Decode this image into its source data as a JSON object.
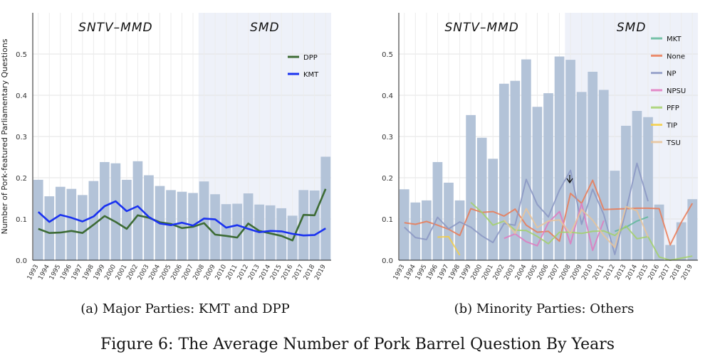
{
  "figure_caption": "Figure 6: The Average Number of Pork Barrel Question By Years",
  "years": [
    "1993",
    "1994",
    "1995",
    "1996",
    "1997",
    "1998",
    "1999",
    "2000",
    "2001",
    "2002",
    "2003",
    "2004",
    "2005",
    "2006",
    "2007",
    "2008",
    "2009",
    "2010",
    "2011",
    "2012",
    "2013",
    "2014",
    "2015",
    "2016",
    "2017",
    "2018",
    "2019"
  ],
  "chart_data": [
    {
      "type": "bar",
      "caption": "(a) Major Parties: KMT and DPP",
      "ylabel": "Number of Pork-featured Parliamentary Questions",
      "ylim": [
        0,
        0.6
      ],
      "yticks": [
        "0.0",
        "0.1",
        "0.2",
        "0.3",
        "0.4",
        "0.5"
      ],
      "regions": [
        {
          "label": "SNTV–MMD",
          "from": "1993",
          "to": "2007",
          "color": "#ffffff"
        },
        {
          "label": "SMD",
          "from": "2008",
          "to": "2019",
          "color": "#eef1f9"
        }
      ],
      "bar_color": "#b3c3d8",
      "bars": [
        0.195,
        0.155,
        0.178,
        0.173,
        0.158,
        0.192,
        0.238,
        0.235,
        0.195,
        0.24,
        0.206,
        0.18,
        0.17,
        0.166,
        0.163,
        0.191,
        0.16,
        0.136,
        0.137,
        0.162,
        0.135,
        0.133,
        0.126,
        0.108,
        0.17,
        0.169,
        0.251
      ],
      "legend": {
        "position": "top-right",
        "entries": [
          "DPP",
          "KMT"
        ]
      },
      "series": [
        {
          "name": "DPP",
          "color": "#3d6b35",
          "values": [
            0.076,
            0.066,
            0.067,
            0.071,
            0.066,
            0.086,
            0.107,
            0.093,
            0.076,
            0.109,
            0.103,
            0.092,
            0.088,
            0.078,
            0.081,
            0.09,
            0.062,
            0.059,
            0.055,
            0.089,
            0.071,
            0.065,
            0.059,
            0.048,
            0.11,
            0.109,
            0.173
          ]
        },
        {
          "name": "KMT",
          "color": "#1a32f0",
          "values": [
            0.117,
            0.093,
            0.11,
            0.103,
            0.094,
            0.106,
            0.131,
            0.143,
            0.119,
            0.131,
            0.105,
            0.089,
            0.085,
            0.091,
            0.084,
            0.101,
            0.099,
            0.079,
            0.085,
            0.076,
            0.068,
            0.071,
            0.07,
            0.064,
            0.06,
            0.061,
            0.077
          ]
        }
      ]
    },
    {
      "type": "bar",
      "caption": "(b) Minority Parties: Others",
      "ylim": [
        0,
        0.6
      ],
      "yticks": [
        "0.0",
        "0.1",
        "0.2",
        "0.3",
        "0.4",
        "0.5"
      ],
      "regions": [
        {
          "label": "SNTV–MMD",
          "from": "1993",
          "to": "2007",
          "color": "#ffffff"
        },
        {
          "label": "SMD",
          "from": "2008",
          "to": "2019",
          "color": "#eef1f9"
        }
      ],
      "bar_color": "#b3c3d8",
      "bars": [
        0.172,
        0.14,
        0.145,
        0.238,
        0.188,
        0.145,
        0.352,
        0.297,
        0.246,
        0.428,
        0.435,
        0.487,
        0.372,
        0.405,
        0.494,
        0.486,
        0.408,
        0.457,
        0.413,
        0.217,
        0.326,
        0.362,
        0.347,
        0.135,
        0.037,
        0.092,
        0.148
      ],
      "legend": {
        "position": "top-right",
        "entries": [
          "MKT",
          "None",
          "NP",
          "NPSU",
          "PFP",
          "TIP",
          "TSU"
        ]
      },
      "series": [
        {
          "name": "MKT",
          "color": "#5fb89a",
          "values": [
            null,
            null,
            null,
            null,
            null,
            null,
            null,
            null,
            null,
            null,
            null,
            null,
            null,
            null,
            null,
            null,
            null,
            null,
            null,
            0.07,
            0.08,
            0.095,
            0.105,
            null,
            null,
            null,
            null
          ]
        },
        {
          "name": "None",
          "color": "#ea7a55",
          "values": [
            0.091,
            0.087,
            0.094,
            0.085,
            0.075,
            0.06,
            0.125,
            0.116,
            0.118,
            0.107,
            0.124,
            0.085,
            0.068,
            0.07,
            0.046,
            0.162,
            0.138,
            0.194,
            0.123,
            0.124,
            0.125,
            0.126,
            0.126,
            0.125,
            0.037,
            0.092,
            0.138
          ]
        },
        {
          "name": "NP",
          "color": "#8a96c3",
          "values": [
            0.08,
            0.055,
            0.05,
            0.104,
            0.076,
            0.093,
            0.08,
            0.059,
            0.043,
            0.089,
            0.085,
            0.196,
            0.135,
            0.105,
            0.17,
            0.218,
            0.087,
            0.172,
            0.111,
            0.014,
            0.12,
            0.235,
            0.143,
            null,
            null,
            null,
            null
          ]
        },
        {
          "name": "NPSU",
          "color": "#e07ac0",
          "values": [
            null,
            null,
            null,
            null,
            null,
            null,
            null,
            null,
            null,
            0.053,
            0.064,
            0.045,
            0.035,
            0.091,
            0.118,
            0.04,
            0.138,
            0.024,
            0.096,
            null,
            null,
            null,
            null,
            null,
            null,
            null,
            null
          ]
        },
        {
          "name": "PFP",
          "color": "#a3d16b",
          "values": [
            null,
            null,
            null,
            null,
            null,
            null,
            0.14,
            0.116,
            0.085,
            0.095,
            0.073,
            0.072,
            0.058,
            0.04,
            0.068,
            0.068,
            0.065,
            0.07,
            0.071,
            0.06,
            0.083,
            0.052,
            0.057,
            0.008,
            0.0,
            0.005,
            0.01
          ]
        },
        {
          "name": "TIP",
          "color": "#f5cf46",
          "values": [
            null,
            null,
            null,
            0.056,
            0.057,
            0.012,
            null,
            null,
            null,
            null,
            null,
            null,
            null,
            null,
            null,
            null,
            null,
            null,
            null,
            null,
            null,
            null,
            null,
            null,
            null,
            null,
            null
          ]
        },
        {
          "name": "TSU",
          "color": "#e9c49a",
          "values": [
            null,
            null,
            null,
            null,
            null,
            null,
            null,
            null,
            null,
            0.098,
            0.065,
            0.125,
            0.079,
            0.095,
            0.098,
            0.065,
            0.123,
            0.097,
            0.06,
            0.031,
            0.13,
            0.12,
            0.056,
            null,
            null,
            null,
            null
          ]
        }
      ]
    }
  ]
}
